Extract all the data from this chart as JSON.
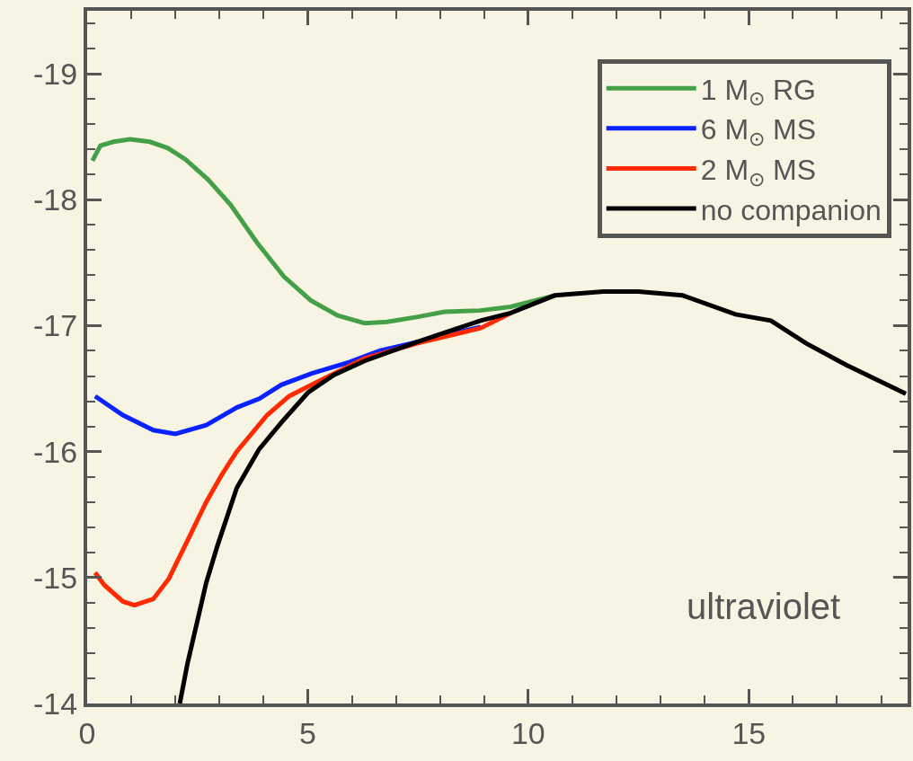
{
  "chart_data": {
    "type": "line",
    "xlim": [
      0,
      18.6
    ],
    "xticks": [
      0,
      5,
      10,
      15
    ],
    "ylim": [
      -14,
      -19.5
    ],
    "yticks": [
      -19,
      -18,
      -17,
      -16,
      -15,
      -14
    ],
    "grid": false,
    "legend": "top right",
    "line_style": "solid",
    "marker": "none",
    "annotations": [
      "ultraviolet"
    ],
    "series": [
      {
        "name": "1 M$_{⊙}$ RG",
        "color": "#44a047",
        "x": [
          0.12,
          0.3,
          0.6,
          0.97,
          1.42,
          1.83,
          2.23,
          2.74,
          3.25,
          3.85,
          4.46,
          5.07,
          5.68,
          6.29,
          6.8,
          7.5,
          8.1,
          8.9,
          9.6,
          10.6
        ],
        "values": [
          -18.31,
          -18.43,
          -18.46,
          -18.48,
          -18.46,
          -18.41,
          -18.32,
          -18.16,
          -17.96,
          -17.66,
          -17.39,
          -17.2,
          -17.08,
          -17.02,
          -17.03,
          -17.07,
          -17.11,
          -17.12,
          -17.15,
          -17.24
        ]
      },
      {
        "name": "6 M$_{⊙}$ MS",
        "color": "#0a22ff",
        "x": [
          0.18,
          0.81,
          1.5,
          2.0,
          2.7,
          3.39,
          3.9,
          4.4,
          5.09,
          5.94,
          6.63,
          7.48,
          8.92
        ],
        "values": [
          -16.44,
          -16.29,
          -16.17,
          -16.14,
          -16.21,
          -16.35,
          -16.42,
          -16.53,
          -16.62,
          -16.71,
          -16.8,
          -16.87,
          -16.99
        ]
      },
      {
        "name": "2 M$_{⊙}$ MS",
        "color": "#ff2a00",
        "x": [
          0.18,
          0.39,
          0.81,
          1.07,
          1.5,
          1.85,
          2.27,
          2.7,
          3.04,
          3.39,
          4.08,
          4.58,
          5.25,
          6.29,
          7.48,
          8.92,
          9.6
        ],
        "values": [
          -15.04,
          -14.94,
          -14.81,
          -14.78,
          -14.83,
          -14.99,
          -15.29,
          -15.6,
          -15.81,
          -16.0,
          -16.29,
          -16.44,
          -16.56,
          -16.74,
          -16.86,
          -16.98,
          -17.1
        ]
      },
      {
        "name": "no companion",
        "color": "#000000",
        "x": [
          2.1,
          2.27,
          2.7,
          2.96,
          3.39,
          3.9,
          4.4,
          5.01,
          5.6,
          6.29,
          7.48,
          8.92,
          9.6,
          10.6,
          11.7,
          12.5,
          13.5,
          14.7,
          15.5,
          16.3,
          17.2,
          18.56
        ],
        "values": [
          -14.0,
          -14.31,
          -14.96,
          -15.26,
          -15.71,
          -16.02,
          -16.23,
          -16.47,
          -16.61,
          -16.72,
          -16.87,
          -17.04,
          -17.1,
          -17.24,
          -17.27,
          -17.27,
          -17.24,
          -17.09,
          -17.04,
          -16.86,
          -16.69,
          -16.46
        ]
      }
    ]
  }
}
